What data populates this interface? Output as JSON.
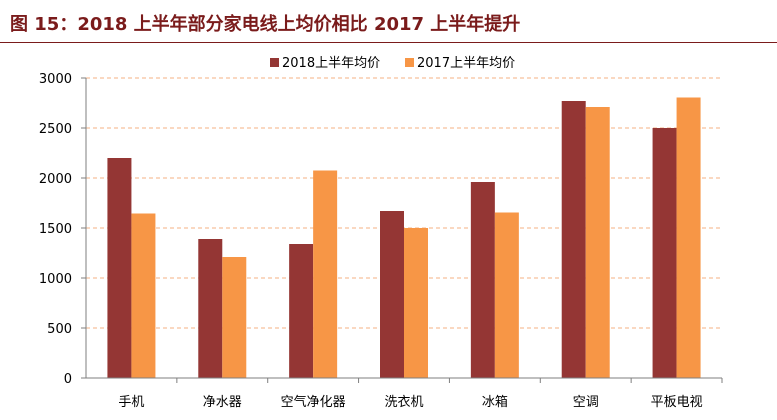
{
  "title": "图 15：2018 上半年部分家电线上均价相比 2017 上半年提升",
  "colors": {
    "title": "#7a1b1b",
    "s2018": "#943634",
    "s2017": "#f79646",
    "grid": "#f4b183"
  },
  "chart_data": {
    "type": "bar",
    "categories": [
      "手机",
      "净水器",
      "空气净化器",
      "洗衣机",
      "冰箱",
      "空调",
      "平板电视"
    ],
    "series": [
      {
        "name": "2018上半年均价",
        "values": [
          2200,
          1390,
          1340,
          1670,
          1960,
          2770,
          2500
        ]
      },
      {
        "name": "2017上半年均价",
        "values": [
          1645,
          1210,
          2075,
          1500,
          1655,
          2710,
          2805
        ]
      }
    ],
    "ylim": [
      0,
      3000
    ],
    "yticks": [
      0,
      500,
      1000,
      1500,
      2000,
      2500,
      3000
    ],
    "grid": true,
    "legend": "top"
  }
}
